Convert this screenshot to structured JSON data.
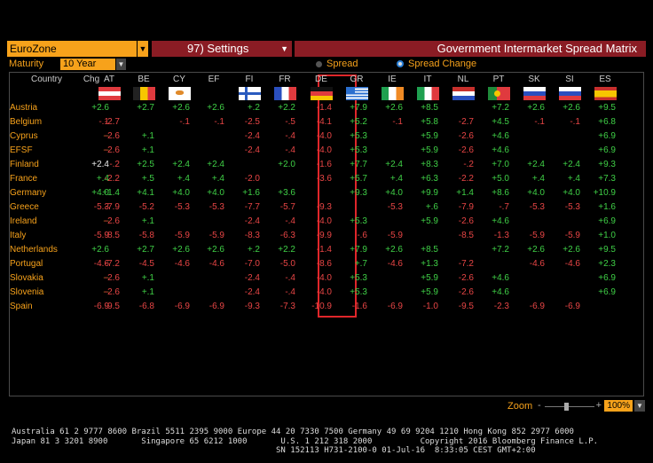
{
  "topbar": {
    "region": "EuroZone",
    "settings_label": "97) Settings",
    "title": "Government Intermarket Spread Matrix"
  },
  "controls": {
    "maturity_label": "Maturity",
    "maturity_value": "10 Year",
    "spread_label": "Spread",
    "spread_change_label": "Spread Change",
    "selected_radio": "Spread Change"
  },
  "matrix": {
    "header_country": "Country",
    "header_chg": "Chg",
    "columns": [
      "AT",
      "BE",
      "CY",
      "EF",
      "FI",
      "FR",
      "DE",
      "GR",
      "IE",
      "IT",
      "NL",
      "PT",
      "SK",
      "SI",
      "ES"
    ],
    "highlighted_column": "DE",
    "rows": [
      {
        "country": "Austria",
        "chg": "+2.6",
        "values": [
          "",
          "+2.7",
          "+2.6",
          "+2.6",
          "+.2",
          "+2.2",
          "-1.4",
          "+7.9",
          "+2.6",
          "+8.5",
          "",
          "+7.2",
          "+2.6",
          "+2.6",
          "+9.5"
        ]
      },
      {
        "country": "Belgium",
        "chg": "-.1",
        "values": [
          "-2.7",
          "",
          "-.1",
          "-.1",
          "-2.5",
          "-.5",
          "-4.1",
          "+5.2",
          "-.1",
          "+5.8",
          "-2.7",
          "+4.5",
          "-.1",
          "-.1",
          "+6.8"
        ]
      },
      {
        "country": "Cyprus",
        "chg": "--",
        "values": [
          "-2.6",
          "+.1",
          "",
          "",
          "-2.4",
          "-.4",
          "-4.0",
          "+5.3",
          "",
          "+5.9",
          "-2.6",
          "+4.6",
          "",
          "",
          "+6.9"
        ]
      },
      {
        "country": "EFSF",
        "chg": "--",
        "values": [
          "-2.6",
          "+.1",
          "",
          "",
          "-2.4",
          "-.4",
          "-4.0",
          "+5.3",
          "",
          "+5.9",
          "-2.6",
          "+4.6",
          "",
          "",
          "+6.9"
        ]
      },
      {
        "country": "Finland",
        "chg": "+2.4",
        "values": [
          "-.2",
          "+2.5",
          "+2.4",
          "+2.4",
          "",
          "+2.0",
          "-1.6",
          "+7.7",
          "+2.4",
          "+8.3",
          "-.2",
          "+7.0",
          "+2.4",
          "+2.4",
          "+9.3"
        ]
      },
      {
        "country": "France",
        "chg": "+.4",
        "values": [
          "-2.2",
          "+.5",
          "+.4",
          "+.4",
          "-2.0",
          "",
          "-3.6",
          "+5.7",
          "+.4",
          "+6.3",
          "-2.2",
          "+5.0",
          "+.4",
          "+.4",
          "+7.3"
        ]
      },
      {
        "country": "Germany",
        "chg": "+4.0",
        "values": [
          "+1.4",
          "+4.1",
          "+4.0",
          "+4.0",
          "+1.6",
          "+3.6",
          "",
          "+9.3",
          "+4.0",
          "+9.9",
          "+1.4",
          "+8.6",
          "+4.0",
          "+4.0",
          "+10.9"
        ]
      },
      {
        "country": "Greece",
        "chg": "-5.3",
        "values": [
          "-7.9",
          "-5.2",
          "-5.3",
          "-5.3",
          "-7.7",
          "-5.7",
          "-9.3",
          "",
          "-5.3",
          "+.6",
          "-7.9",
          "-.7",
          "-5.3",
          "-5.3",
          "+1.6"
        ]
      },
      {
        "country": "Ireland",
        "chg": "--",
        "values": [
          "-2.6",
          "+.1",
          "",
          "",
          "-2.4",
          "-.4",
          "-4.0",
          "+5.3",
          "",
          "+5.9",
          "-2.6",
          "+4.6",
          "",
          "",
          "+6.9"
        ]
      },
      {
        "country": "Italy",
        "chg": "-5.9",
        "values": [
          "-8.5",
          "-5.8",
          "-5.9",
          "-5.9",
          "-8.3",
          "-6.3",
          "-9.9",
          "-.6",
          "-5.9",
          "",
          "-8.5",
          "-1.3",
          "-5.9",
          "-5.9",
          "+1.0"
        ]
      },
      {
        "country": "Netherlands",
        "chg": "+2.6",
        "values": [
          "",
          "+2.7",
          "+2.6",
          "+2.6",
          "+.2",
          "+2.2",
          "-1.4",
          "+7.9",
          "+2.6",
          "+8.5",
          "",
          "+7.2",
          "+2.6",
          "+2.6",
          "+9.5"
        ]
      },
      {
        "country": "Portugal",
        "chg": "-4.6",
        "values": [
          "-7.2",
          "-4.5",
          "-4.6",
          "-4.6",
          "-7.0",
          "-5.0",
          "-8.6",
          "+.7",
          "-4.6",
          "+1.3",
          "-7.2",
          "",
          "-4.6",
          "-4.6",
          "+2.3"
        ]
      },
      {
        "country": "Slovakia",
        "chg": "--",
        "values": [
          "-2.6",
          "+.1",
          "",
          "",
          "-2.4",
          "-.4",
          "-4.0",
          "+5.3",
          "",
          "+5.9",
          "-2.6",
          "+4.6",
          "",
          "",
          "+6.9"
        ]
      },
      {
        "country": "Slovenia",
        "chg": "--",
        "values": [
          "-2.6",
          "+.1",
          "",
          "",
          "-2.4",
          "-.4",
          "-4.0",
          "+5.3",
          "",
          "+5.9",
          "-2.6",
          "+4.6",
          "",
          "",
          "+6.9"
        ]
      },
      {
        "country": "Spain",
        "chg": "-6.9",
        "values": [
          "-9.5",
          "-6.8",
          "-6.9",
          "-6.9",
          "-9.3",
          "-7.3",
          "-10.9",
          "-1.6",
          "-6.9",
          "-1.0",
          "-9.5",
          "-2.3",
          "-6.9",
          "-6.9",
          ""
        ]
      }
    ]
  },
  "zoom": {
    "label": "Zoom",
    "value": "100%",
    "minus": "-",
    "plus": "+"
  },
  "footer": {
    "line1": "Australia 61 2 9777 8600 Brazil 5511 2395 9000 Europe 44 20 7330 7500 Germany 49 69 9204 1210 Hong Kong 852 2977 6000",
    "line2": "Japan 81 3 3201 8900       Singapore 65 6212 1000       U.S. 1 212 318 2000          Copyright 2016 Bloomberg Finance L.P.",
    "line3": "                                                       SN 152113 H731-2100-0 01-Jul-16  8:33:05 CEST GMT+2:00"
  },
  "colors": {
    "accent": "#f7a21b",
    "positive": "#3fcf46",
    "negative": "#e84545",
    "header_bar": "#8a1c24",
    "highlight": "#e0262a"
  }
}
